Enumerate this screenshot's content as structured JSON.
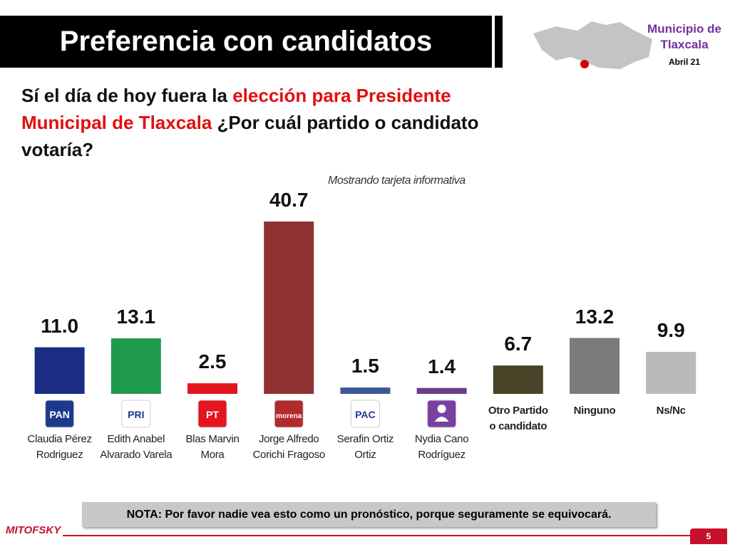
{
  "slide": {
    "place": "Municipio de Tlaxcala",
    "date": "Abril 21",
    "note": "NOTA: Por favor nadie vea esto como un pronóstico, porque seguramente se equivocará.",
    "brand": "MITOFSKY",
    "page": "5",
    "question": [
      "Sí el día de hoy fuera la ",
      "elección para Presidente Municipal de Tlaxcala",
      " ¿Por cuál partido o candidato votaría?"
    ],
    "question_highlight_color": "#e01010"
  },
  "chart_data": {
    "type": "bar",
    "title": "Preferencia con candidatos",
    "annotation": "Mostrando tarjeta informativa",
    "categories": [
      "Claudia Pérez Rodriguez",
      "Edith Anabel Alvarado Varela",
      "Blas Marvin Mora",
      "Jorge Alfredo Corichi Fragoso",
      "Serafin Ortiz Ortiz",
      "Nydia Cano Rodríguez",
      "Otro Partido o candidato",
      "Ninguno",
      "Ns/Nc"
    ],
    "values": [
      11.0,
      13.1,
      2.5,
      40.7,
      1.5,
      1.4,
      6.7,
      13.2,
      9.9
    ],
    "value_labels": [
      "11.0",
      "13.1",
      "2.5",
      "40.7",
      "1.5",
      "1.4",
      "6.7",
      "13.2",
      "9.9"
    ],
    "colors": [
      "#1b2d86",
      "#1e9a4c",
      "#e5151d",
      "#8f3232",
      "#3b5996",
      "#6b3d8a",
      "#4a4327",
      "#7b7b7b",
      "#b9b9b9"
    ],
    "party_labels": [
      "PAN",
      "PRI",
      "PT",
      "morena",
      "PAC",
      null,
      null,
      null,
      null
    ],
    "logo_colors": [
      "#1b3a8c",
      "#ffffff",
      "#e5151d",
      "#b22a2a",
      "#ffffff",
      "#7b3fa0",
      null,
      null,
      null
    ],
    "category_bold": [
      false,
      false,
      false,
      false,
      false,
      false,
      true,
      true,
      true
    ]
  }
}
